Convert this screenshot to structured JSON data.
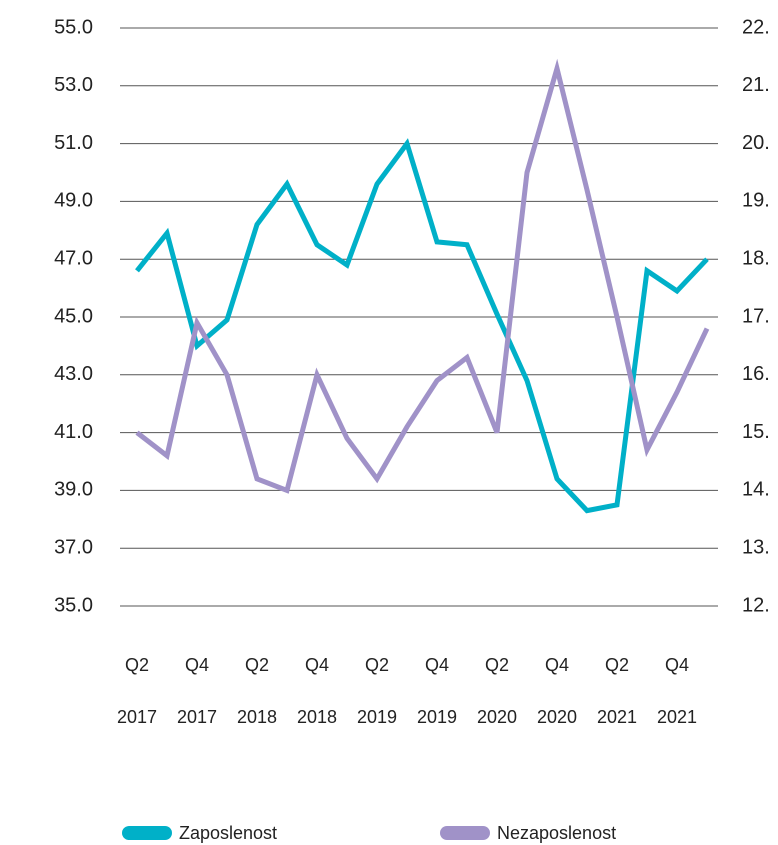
{
  "chart_data": {
    "type": "line",
    "categories": [
      [
        "Q2",
        "2017"
      ],
      null,
      [
        "Q4",
        "2017"
      ],
      null,
      [
        "Q2",
        "2018"
      ],
      null,
      [
        "Q4",
        "2018"
      ],
      null,
      [
        "Q2",
        "2019"
      ],
      null,
      [
        "Q4",
        "2019"
      ],
      null,
      [
        "Q2",
        "2020"
      ],
      null,
      [
        "Q4",
        "2020"
      ],
      null,
      [
        "Q2",
        "2021"
      ],
      null,
      [
        "Q4",
        "2021"
      ],
      null
    ],
    "series": [
      {
        "name": "Zaposlenost",
        "color": "#00b0c8",
        "axis": "y",
        "values": [
          46.6,
          47.9,
          44.0,
          44.9,
          48.2,
          49.6,
          47.5,
          46.8,
          49.6,
          51.0,
          47.6,
          47.5,
          45.1,
          42.8,
          39.4,
          38.3,
          38.5,
          46.6,
          45.9,
          47.0
        ]
      },
      {
        "name": "Nezaposlenost",
        "color": "#a092c8",
        "axis": "y2",
        "values": [
          15.0,
          14.6,
          16.9,
          16.0,
          14.2,
          14.0,
          16.0,
          14.9,
          14.2,
          15.1,
          15.9,
          16.3,
          15.0,
          19.5,
          21.3,
          19.2,
          17.0,
          14.7,
          15.7,
          16.8
        ]
      }
    ],
    "ylim": [
      35,
      55
    ],
    "yticks": [
      {
        "value": 55,
        "label": "55.0"
      },
      {
        "value": 53,
        "label": "53.0"
      },
      {
        "value": 51,
        "label": "51.0"
      },
      {
        "value": 49,
        "label": "49.0"
      },
      {
        "value": 47,
        "label": "47.0"
      },
      {
        "value": 45,
        "label": "45.0"
      },
      {
        "value": 43,
        "label": "43.0"
      },
      {
        "value": 41,
        "label": "41.0"
      },
      {
        "value": 39,
        "label": "39.0"
      },
      {
        "value": 37,
        "label": "37.0"
      },
      {
        "value": 35,
        "label": "35.0"
      }
    ],
    "y2lim": [
      12,
      22
    ],
    "y2ticks": [
      {
        "value": 22,
        "label": "22."
      },
      {
        "value": 21,
        "label": "21."
      },
      {
        "value": 20,
        "label": "20."
      },
      {
        "value": 19,
        "label": "19."
      },
      {
        "value": 18,
        "label": "18."
      },
      {
        "value": 17,
        "label": "17."
      },
      {
        "value": 16,
        "label": "16."
      },
      {
        "value": 15,
        "label": "15."
      },
      {
        "value": 14,
        "label": "14."
      },
      {
        "value": 13,
        "label": "13."
      },
      {
        "value": 12,
        "label": "12."
      }
    ],
    "grid": true,
    "legend": "bottom"
  }
}
